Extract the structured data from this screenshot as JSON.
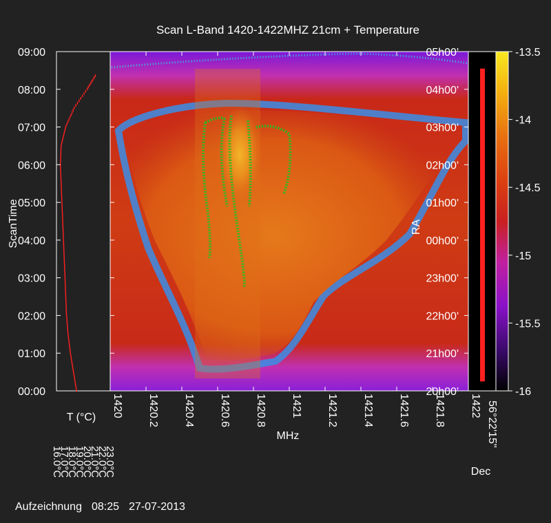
{
  "chart_data": {
    "type": "heatmap",
    "title": "Scan L-Band 1420-1422MHZ 21cm + Temperature",
    "xlabel": "MHz",
    "ylabel": "ScanTime",
    "right_axis_label": "RA",
    "x_ticks": [
      "1420",
      "1420.2",
      "1420.4",
      "1420.6",
      "1420.8",
      "1421",
      "1421.2",
      "1421.4",
      "1421.6",
      "1421.8",
      "1422"
    ],
    "x_values": [
      1420,
      1420.2,
      1420.4,
      1420.6,
      1420.8,
      1421,
      1421.2,
      1421.4,
      1421.6,
      1421.8,
      1422
    ],
    "xlim": [
      1420,
      1422
    ],
    "time_ticks": [
      "00:00",
      "01:00",
      "02:00",
      "03:00",
      "04:00",
      "05:00",
      "06:00",
      "07:00",
      "08:00",
      "09:00"
    ],
    "ylim_hours": [
      0,
      9
    ],
    "ra_ticks": [
      "20h00'",
      "21h00'",
      "22h00'",
      "23h00'",
      "00h00'",
      "01h00'",
      "02h00'",
      "03h00'",
      "04h00'",
      "05h00'"
    ],
    "colorbar": {
      "ticks": [
        "-13.5",
        "-14",
        "-14.5",
        "-15",
        "-15.5",
        "-16"
      ],
      "values": [
        -13.5,
        -14,
        -14.5,
        -15,
        -15.5,
        -16
      ],
      "range": [
        -16,
        -13.5
      ],
      "colors": [
        "#000000",
        "#3a0a6a",
        "#8a10c8",
        "#c020a0",
        "#c82020",
        "#dc4010",
        "#e87010",
        "#f4b010",
        "#f8e820"
      ]
    },
    "temperature": {
      "label": "T (°C)",
      "scale_ticks": [
        "16.0°C",
        "17.0°C",
        "18.0°C",
        "19.0°C",
        "20.0°C",
        "21.0°C",
        "22.0°C",
        "23.0°C"
      ],
      "series": [
        {
          "t": 0.0,
          "temp": 18.6
        },
        {
          "t": 0.5,
          "temp": 18.2
        },
        {
          "t": 1.0,
          "temp": 17.8
        },
        {
          "t": 1.5,
          "temp": 17.5
        },
        {
          "t": 2.0,
          "temp": 17.3
        },
        {
          "t": 2.5,
          "temp": 17.2
        },
        {
          "t": 3.0,
          "temp": 17.1
        },
        {
          "t": 3.5,
          "temp": 17.0
        },
        {
          "t": 4.0,
          "temp": 16.9
        },
        {
          "t": 4.5,
          "temp": 16.8
        },
        {
          "t": 5.0,
          "temp": 16.7
        },
        {
          "t": 5.5,
          "temp": 16.6
        },
        {
          "t": 6.0,
          "temp": 16.5
        },
        {
          "t": 6.5,
          "temp": 16.6
        },
        {
          "t": 7.0,
          "temp": 17.2
        },
        {
          "t": 7.5,
          "temp": 18.3
        },
        {
          "t": 8.0,
          "temp": 20.0
        },
        {
          "t": 8.4,
          "temp": 21.2
        }
      ],
      "color": "#ff2020"
    },
    "declination": {
      "tick": "56°22'15\"",
      "label": "Dec",
      "range_hours": [
        0.25,
        8.55
      ],
      "color": "#ff2020"
    },
    "heatmap_colors": {
      "background_low": "#c82a12",
      "background_mid": "#dc5a14",
      "hydrogen_core": "#f0a020",
      "contour_blue": "#3a8ee8",
      "contour_green": "#22c022",
      "edge_purple": "#9020d0",
      "edge_magenta": "#d030c0"
    }
  },
  "footer": {
    "label": "Aufzeichnung",
    "time": "08:25",
    "date": "27-07-2013"
  }
}
